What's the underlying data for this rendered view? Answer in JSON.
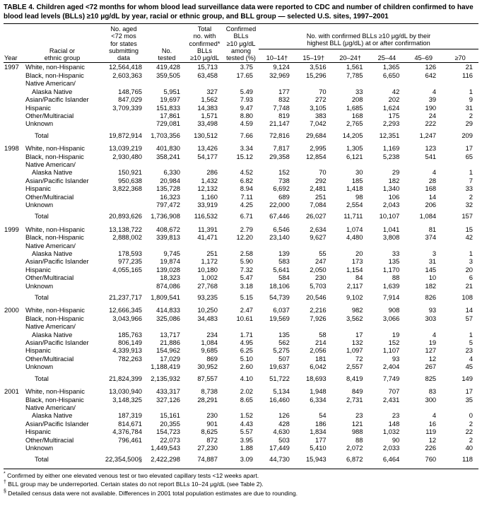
{
  "title": "TABLE 4. Children aged <72 months for whom blood lead surveillance data were reported to CDC and number of children confirmed to have blood lead levels (BLLs) ≥10 μg/dL by year, racial or ethnic group, and BLL group — selected U.S. sites, 1997–2001",
  "columns": {
    "year": "Year",
    "group": "Racial or\nethnic group",
    "pop": "No. aged\n<72 mos\nfor states\nsubmitting\ndata",
    "tested": "No.\ntested",
    "confirmed": "Total\nno. with\nconfirmed*\nBLLs\n≥10 μg/dL",
    "pct": "Confirmed\nBLLs\n≥10 μg/dL\namong\ntested (%)",
    "span": "No. with confirmed BLLs ≥10 μg/dL by their\nhighest BLL (μg/dL) at or after confirmation",
    "bll_groups": [
      "10–14†",
      "15–19†",
      "20–24†",
      "25–44",
      "45–69",
      "≥70"
    ]
  },
  "years": [
    {
      "label": "1997",
      "rows": [
        {
          "group": "White, non-Hispanic",
          "cells": [
            "12,564,418",
            "419,428",
            "15,713",
            "3.75",
            "9,124",
            "3,516",
            "1,561",
            "1,365",
            "126",
            "21"
          ]
        },
        {
          "group": "Black, non-Hispanic",
          "cells": [
            "2,603,363",
            "359,505",
            "63,458",
            "17.65",
            "32,969",
            "15,296",
            "7,785",
            "6,650",
            "642",
            "116"
          ]
        },
        {
          "group": "Native American/",
          "label_only": true,
          "cells": null
        },
        {
          "group": "Alaska Native",
          "indent": true,
          "cells": [
            "148,765",
            "5,951",
            "327",
            "5.49",
            "177",
            "70",
            "33",
            "42",
            "4",
            "1"
          ]
        },
        {
          "group": "Asian/Pacific Islander",
          "cells": [
            "847,029",
            "19,697",
            "1,562",
            "7.93",
            "832",
            "272",
            "208",
            "202",
            "39",
            "9"
          ]
        },
        {
          "group": "Hispanic",
          "cells": [
            "3,709,339",
            "151,833",
            "14,383",
            "9.47",
            "7,748",
            "3,105",
            "1,685",
            "1,624",
            "190",
            "31"
          ]
        },
        {
          "group": "Other/Multiracial",
          "cells": [
            "",
            "17,861",
            "1,571",
            "8.80",
            "819",
            "383",
            "168",
            "175",
            "24",
            "2"
          ]
        },
        {
          "group": "Unknown",
          "cells": [
            "",
            "729,081",
            "33,498",
            "4.59",
            "21,147",
            "7,042",
            "2,765",
            "2,293",
            "222",
            "29"
          ]
        },
        {
          "group": "Total",
          "total": true,
          "cells": [
            "19,872,914",
            "1,703,356",
            "130,512",
            "7.66",
            "72,816",
            "29,684",
            "14,205",
            "12,351",
            "1,247",
            "209"
          ]
        }
      ]
    },
    {
      "label": "1998",
      "rows": [
        {
          "group": "White, non-Hispanic",
          "cells": [
            "13,039,219",
            "401,830",
            "13,426",
            "3.34",
            "7,817",
            "2,995",
            "1,305",
            "1,169",
            "123",
            "17"
          ]
        },
        {
          "group": "Black, non-Hispanic",
          "cells": [
            "2,930,480",
            "358,241",
            "54,177",
            "15.12",
            "29,358",
            "12,854",
            "6,121",
            "5,238",
            "541",
            "65"
          ]
        },
        {
          "group": "Native American/",
          "label_only": true,
          "cells": null
        },
        {
          "group": "Alaska Native",
          "indent": true,
          "cells": [
            "150,921",
            "6,330",
            "286",
            "4.52",
            "152",
            "70",
            "30",
            "29",
            "4",
            "1"
          ]
        },
        {
          "group": "Asian/Pacific Islander",
          "cells": [
            "950,638",
            "20,984",
            "1,432",
            "6.82",
            "738",
            "292",
            "185",
            "182",
            "28",
            "7"
          ]
        },
        {
          "group": "Hispanic",
          "cells": [
            "3,822,368",
            "135,728",
            "12,132",
            "8.94",
            "6,692",
            "2,481",
            "1,418",
            "1,340",
            "168",
            "33"
          ]
        },
        {
          "group": "Other/Multiracial",
          "cells": [
            "",
            "16,323",
            "1,160",
            "7.11",
            "689",
            "251",
            "98",
            "106",
            "14",
            "2"
          ]
        },
        {
          "group": "Unknown",
          "cells": [
            "",
            "797,472",
            "33,919",
            "4.25",
            "22,000",
            "7,084",
            "2,554",
            "2,043",
            "206",
            "32"
          ]
        },
        {
          "group": "Total",
          "total": true,
          "cells": [
            "20,893,626",
            "1,736,908",
            "116,532",
            "6.71",
            "67,446",
            "26,027",
            "11,711",
            "10,107",
            "1,084",
            "157"
          ]
        }
      ]
    },
    {
      "label": "1999",
      "rows": [
        {
          "group": "White, non-Hispanic",
          "cells": [
            "13,138,722",
            "408,672",
            "11,391",
            "2.79",
            "6,546",
            "2,634",
            "1,074",
            "1,041",
            "81",
            "15"
          ]
        },
        {
          "group": "Black, non-Hispanic",
          "cells": [
            "2,888,002",
            "339,813",
            "41,471",
            "12.20",
            "23,140",
            "9,627",
            "4,480",
            "3,808",
            "374",
            "42"
          ]
        },
        {
          "group": "Native American/",
          "label_only": true,
          "cells": null
        },
        {
          "group": "Alaska Native",
          "indent": true,
          "cells": [
            "178,593",
            "9,745",
            "251",
            "2.58",
            "139",
            "55",
            "20",
            "33",
            "3",
            "1"
          ]
        },
        {
          "group": "Asian/Pacific Islander",
          "cells": [
            "977,235",
            "19,874",
            "1,172",
            "5.90",
            "583",
            "247",
            "173",
            "135",
            "31",
            "3"
          ]
        },
        {
          "group": "Hispanic",
          "cells": [
            "4,055,165",
            "139,028",
            "10,180",
            "7.32",
            "5,641",
            "2,050",
            "1,154",
            "1,170",
            "145",
            "20"
          ]
        },
        {
          "group": "Other/Multiracial",
          "cells": [
            "",
            "18,323",
            "1,002",
            "5.47",
            "584",
            "230",
            "84",
            "88",
            "10",
            "6"
          ]
        },
        {
          "group": "Unknown",
          "cells": [
            "",
            "874,086",
            "27,768",
            "3.18",
            "18,106",
            "5,703",
            "2,117",
            "1,639",
            "182",
            "21"
          ]
        },
        {
          "group": "Total",
          "total": true,
          "cells": [
            "21,237,717",
            "1,809,541",
            "93,235",
            "5.15",
            "54,739",
            "20,546",
            "9,102",
            "7,914",
            "826",
            "108"
          ]
        }
      ]
    },
    {
      "label": "2000",
      "rows": [
        {
          "group": "White, non-Hispanic",
          "cells": [
            "12,666,345",
            "414,833",
            "10,250",
            "2.47",
            "6,037",
            "2,216",
            "982",
            "908",
            "93",
            "14"
          ]
        },
        {
          "group": "Black, non-Hispanic",
          "cells": [
            "3,043,966",
            "325,086",
            "34,483",
            "10.61",
            "19,569",
            "7,926",
            "3,562",
            "3,066",
            "303",
            "57"
          ]
        },
        {
          "group": "Native American/",
          "label_only": true,
          "cells": null
        },
        {
          "group": "Alaska Native",
          "indent": true,
          "cells": [
            "185,763",
            "13,717",
            "234",
            "1.71",
            "135",
            "58",
            "17",
            "19",
            "4",
            "1"
          ]
        },
        {
          "group": "Asian/Pacific Islander",
          "cells": [
            "806,149",
            "21,886",
            "1,084",
            "4.95",
            "562",
            "214",
            "132",
            "152",
            "19",
            "5"
          ]
        },
        {
          "group": "Hispanic",
          "cells": [
            "4,339,913",
            "154,962",
            "9,685",
            "6.25",
            "5,275",
            "2,056",
            "1,097",
            "1,107",
            "127",
            "23"
          ]
        },
        {
          "group": "Other/Multiracial",
          "cells": [
            "782,263",
            "17,029",
            "869",
            "5.10",
            "507",
            "181",
            "72",
            "93",
            "12",
            "4"
          ]
        },
        {
          "group": "Unknown",
          "cells": [
            "",
            "1,188,419",
            "30,952",
            "2.60",
            "19,637",
            "6,042",
            "2,557",
            "2,404",
            "267",
            "45"
          ]
        },
        {
          "group": "Total",
          "total": true,
          "cells": [
            "21,824,399",
            "2,135,932",
            "87,557",
            "4.10",
            "51,722",
            "18,693",
            "8,419",
            "7,749",
            "825",
            "149"
          ]
        }
      ]
    },
    {
      "label": "2001",
      "rows": [
        {
          "group": "White, non-Hispanic",
          "cells": [
            "13,030,940",
            "433,317",
            "8,738",
            "2.02",
            "5,134",
            "1,948",
            "849",
            "707",
            "83",
            "17"
          ]
        },
        {
          "group": "Black, non-Hispanic",
          "cells": [
            "3,148,325",
            "327,126",
            "28,291",
            "8.65",
            "16,460",
            "6,334",
            "2,731",
            "2,431",
            "300",
            "35"
          ]
        },
        {
          "group": "Native American/",
          "label_only": true,
          "cells": null
        },
        {
          "group": "Alaska Native",
          "indent": true,
          "cells": [
            "187,319",
            "15,161",
            "230",
            "1.52",
            "126",
            "54",
            "23",
            "23",
            "4",
            "0"
          ]
        },
        {
          "group": "Asian/Pacific Islander",
          "cells": [
            "814,671",
            "20,355",
            "901",
            "4.43",
            "428",
            "186",
            "121",
            "148",
            "16",
            "2"
          ]
        },
        {
          "group": "Hispanic",
          "cells": [
            "4,376,784",
            "154,723",
            "8,625",
            "5.57",
            "4,630",
            "1,834",
            "988",
            "1,032",
            "119",
            "22"
          ]
        },
        {
          "group": "Other/Multiracial",
          "cells": [
            "796,461",
            "22,073",
            "872",
            "3.95",
            "503",
            "177",
            "88",
            "90",
            "12",
            "2"
          ]
        },
        {
          "group": "Unknown",
          "cells": [
            "",
            "1,449,543",
            "27,230",
            "1.88",
            "17,449",
            "5,410",
            "2,072",
            "2,033",
            "226",
            "40"
          ]
        },
        {
          "group": "Total",
          "total": true,
          "cells": [
            "22,354,500§",
            "2,422,298",
            "74,887",
            "3.09",
            "44,730",
            "15,943",
            "6,872",
            "6,464",
            "760",
            "118"
          ]
        }
      ]
    }
  ],
  "footnotes": [
    {
      "marker": "*",
      "text": " Confirmed by either one elevated venous test or two elevated capillary tests <12 weeks apart."
    },
    {
      "marker": "†",
      "text": " BLL group may be underreported. Certain states do not report BLLs 10–24 μg/dL (see Table 2)."
    },
    {
      "marker": "§",
      "text": " Detailed census data were not available. Differences in 2001 total population estimates are due to rounding."
    }
  ]
}
